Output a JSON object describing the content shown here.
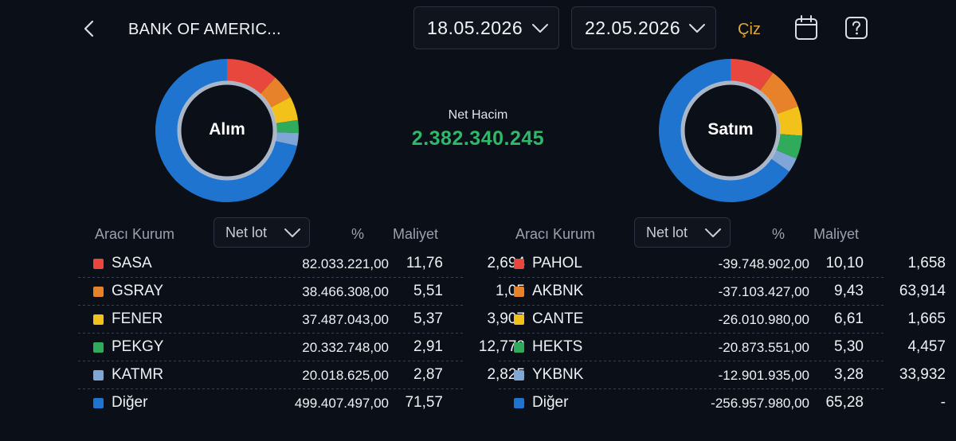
{
  "header": {
    "title": "BANK OF AMERIC...",
    "start_date": "18.05.2026",
    "end_date": "22.05.2026",
    "draw_label": "Çiz",
    "icons": [
      "back-icon",
      "chevron-down-icon",
      "calendar-icon",
      "help-icon"
    ]
  },
  "summary": {
    "buy_label": "Alım",
    "sell_label": "Satım",
    "net_volume_label": "Net Hacim",
    "net_volume_value": "2.382.340.245"
  },
  "colors": {
    "red": "#e8473e",
    "orange": "#e8822a",
    "yellow": "#f2c21b",
    "green": "#2fab5b",
    "lightblue": "#7fa6d6",
    "blue": "#1f74cf",
    "net_positive": "#2eb86a",
    "accent": "#e0a83a"
  },
  "buy_table": {
    "col_broker": "Aracı Kurum",
    "col_select": "Net lot",
    "col_pct": "%",
    "col_cost": "Maliyet",
    "rows": [
      {
        "name": "SASA",
        "lot": "82.033.221,00",
        "pct": "11,76",
        "cost": "2,694",
        "pct_value": 11.76,
        "color": "#e8473e"
      },
      {
        "name": "GSRAY",
        "lot": "38.466.308,00",
        "pct": "5,51",
        "cost": "1,05",
        "pct_value": 5.51,
        "color": "#e8822a"
      },
      {
        "name": "FENER",
        "lot": "37.487.043,00",
        "pct": "5,37",
        "cost": "3,907",
        "pct_value": 5.37,
        "color": "#f2c21b"
      },
      {
        "name": "PEKGY",
        "lot": "20.332.748,00",
        "pct": "2,91",
        "cost": "12,772",
        "pct_value": 2.91,
        "color": "#2fab5b"
      },
      {
        "name": "KATMR",
        "lot": "20.018.625,00",
        "pct": "2,87",
        "cost": "2,825",
        "pct_value": 2.87,
        "color": "#7fa6d6"
      },
      {
        "name": "Diğer",
        "lot": "499.407.497,00",
        "pct": "71,57",
        "cost": "-",
        "pct_value": 71.57,
        "color": "#1f74cf"
      }
    ]
  },
  "sell_table": {
    "col_broker": "Aracı Kurum",
    "col_select": "Net lot",
    "col_pct": "%",
    "col_cost": "Maliyet",
    "rows": [
      {
        "name": "PAHOL",
        "lot": "-39.748.902,00",
        "pct": "10,10",
        "cost": "1,658",
        "pct_value": 10.1,
        "color": "#e8473e"
      },
      {
        "name": "AKBNK",
        "lot": "-37.103.427,00",
        "pct": "9,43",
        "cost": "63,914",
        "pct_value": 9.43,
        "color": "#e8822a"
      },
      {
        "name": "CANTE",
        "lot": "-26.010.980,00",
        "pct": "6,61",
        "cost": "1,665",
        "pct_value": 6.61,
        "color": "#f2c21b"
      },
      {
        "name": "HEKTS",
        "lot": "-20.873.551,00",
        "pct": "5,30",
        "cost": "4,457",
        "pct_value": 5.3,
        "color": "#2fab5b"
      },
      {
        "name": "YKBNK",
        "lot": "-12.901.935,00",
        "pct": "3,28",
        "cost": "33,932",
        "pct_value": 3.28,
        "color": "#7fa6d6"
      },
      {
        "name": "Diğer",
        "lot": "-256.957.980,00",
        "pct": "65,28",
        "cost": "-",
        "pct_value": 65.28,
        "color": "#1f74cf"
      }
    ]
  }
}
